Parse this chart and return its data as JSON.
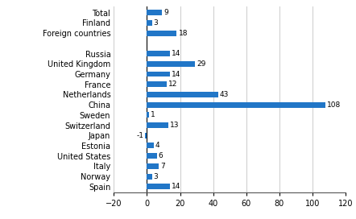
{
  "categories": [
    "Total",
    "Finland",
    "Foreign countries",
    "",
    "Russia",
    "United Kingdom",
    "Germany",
    "France",
    "Netherlands",
    "China",
    "Sweden",
    "Switzerland",
    "Japan",
    "Estonia",
    "United States",
    "Italy",
    "Norway",
    "Spain"
  ],
  "values": [
    9,
    3,
    18,
    null,
    14,
    29,
    14,
    12,
    43,
    108,
    1,
    13,
    -1,
    4,
    6,
    7,
    3,
    14
  ],
  "bar_color": "#2176c7",
  "xlim": [
    -20,
    120
  ],
  "xticks": [
    -20,
    0,
    20,
    40,
    60,
    80,
    100,
    120
  ],
  "value_fontsize": 6.5,
  "label_fontsize": 7.0,
  "bar_height": 0.55,
  "grid_color": "#cccccc",
  "spine_color": "#555555"
}
